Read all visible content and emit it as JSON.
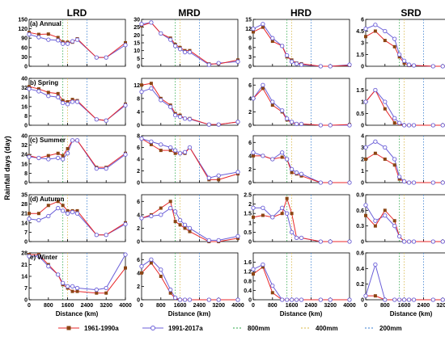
{
  "figure": {
    "ylabel": "Rainfall days (day)",
    "columns": [
      "LRD",
      "MRD",
      "HRD",
      "SRD"
    ],
    "panel_labels": [
      "(a) Annual",
      "b) Spring",
      "(c) Summer",
      "(d) Autumn",
      "e) Winter"
    ],
    "xlabel": "Distance (km)",
    "x_ticks": [
      0,
      800,
      1600,
      2400,
      3200,
      4000
    ],
    "legend": {
      "s1": "1961-1990a",
      "s2": "1991-2017a",
      "l1": "800mm",
      "l2": "400mm",
      "l3": "200mm"
    },
    "colors": {
      "s1_line": "#e8282b",
      "s1_marker": "#8b4513",
      "s2": "#6b5fd8",
      "l800": "#2fa84a",
      "l400": "#d8b84a",
      "l200": "#3a7fd0"
    }
  },
  "chart_data": {
    "type": "line",
    "x": [
      0,
      400,
      800,
      1200,
      1400,
      1600,
      1800,
      2000,
      2800,
      3200,
      4000
    ],
    "xlim": [
      0,
      4000
    ],
    "reference_lines": {
      "800mm": 1400,
      "400mm": 1600,
      "200mm": 2400
    },
    "panels": [
      {
        "row": "(a) Annual",
        "col": "LRD",
        "ylim": [
          0,
          150
        ],
        "yticks": [
          0,
          30,
          60,
          90,
          120,
          150
        ],
        "s1": [
          108,
          102,
          103,
          92,
          78,
          77,
          77,
          88,
          28,
          28,
          75
        ],
        "s2": [
          102,
          93,
          85,
          83,
          72,
          72,
          80,
          85,
          28,
          28,
          68
        ]
      },
      {
        "row": "(a) Annual",
        "col": "MRD",
        "ylim": [
          0,
          30
        ],
        "yticks": [
          0,
          5,
          10,
          15,
          20,
          25,
          30
        ],
        "s1": [
          26,
          28,
          21,
          18,
          14,
          12,
          10,
          10,
          1.5,
          1.5,
          4
        ],
        "s2": [
          27,
          28,
          21,
          17,
          13,
          11,
          9,
          9,
          1,
          2,
          3
        ]
      },
      {
        "row": "(a) Annual",
        "col": "HRD",
        "ylim": [
          0,
          15
        ],
        "yticks": [
          0,
          3,
          6,
          9,
          12,
          15
        ],
        "s1": [
          11,
          12.5,
          8,
          6.5,
          3,
          2,
          1,
          0.8,
          0,
          0,
          0.3
        ],
        "s2": [
          12,
          13.5,
          9,
          6.5,
          3.5,
          1.5,
          0.8,
          0.5,
          0,
          0,
          0.5
        ]
      },
      {
        "row": "(a) Annual",
        "col": "SRD",
        "ylim": [
          0,
          6
        ],
        "yticks": [
          0,
          1.5,
          3,
          4.5,
          6
        ],
        "s1": [
          3.8,
          4.5,
          3.3,
          2.5,
          1.2,
          0.4,
          0.1,
          0.1,
          0,
          0,
          0
        ],
        "s2": [
          4.8,
          5.3,
          4.5,
          3.5,
          1.5,
          0.7,
          0.2,
          0.1,
          0,
          0,
          0
        ]
      },
      {
        "row": "b) Spring",
        "col": "LRD",
        "ylim": [
          0,
          40
        ],
        "yticks": [
          0,
          8,
          16,
          24,
          32,
          40
        ],
        "s1": [
          33,
          31,
          28,
          27,
          21,
          20,
          22,
          21,
          5,
          4,
          18
        ],
        "s2": [
          31,
          29,
          25,
          24,
          19,
          18,
          20,
          20,
          5,
          4,
          17
        ]
      },
      {
        "row": "b) Spring",
        "col": "MRD",
        "ylim": [
          0,
          14
        ],
        "yticks": [
          0,
          4,
          8,
          12
        ],
        "s1": [
          12,
          12.5,
          8,
          6,
          3.5,
          3,
          2,
          2,
          0.2,
          0.2,
          1
        ],
        "s2": [
          10,
          11,
          7.5,
          5.5,
          3,
          2.5,
          2,
          1.8,
          0.2,
          0.2,
          1
        ]
      },
      {
        "row": "b) Spring",
        "col": "HRD",
        "ylim": [
          0,
          7
        ],
        "yticks": [
          0,
          2,
          4,
          6
        ],
        "s1": [
          4,
          5.5,
          3,
          2,
          0.8,
          0.4,
          0.2,
          0.2,
          0,
          0,
          0.1
        ],
        "s2": [
          4,
          6,
          3.5,
          2.2,
          1,
          0.5,
          0.2,
          0.2,
          0,
          0,
          0
        ]
      },
      {
        "row": "b) Spring",
        "col": "SRD",
        "ylim": [
          0,
          2
        ],
        "yticks": [
          0,
          0.5,
          1,
          1.5
        ],
        "s1": [
          1,
          1.5,
          0.7,
          0.1,
          0.05,
          0,
          0,
          0,
          0,
          0,
          0
        ],
        "s2": [
          1,
          1.5,
          1,
          0.3,
          0.1,
          0,
          0,
          0,
          0,
          0,
          0
        ]
      },
      {
        "row": "(c) Summer",
        "col": "LRD",
        "ylim": [
          0,
          40
        ],
        "yticks": [
          0,
          8,
          16,
          24,
          32,
          40
        ],
        "s1": [
          23,
          21,
          23,
          25,
          23,
          29,
          36,
          36,
          13,
          13,
          25
        ],
        "s2": [
          22,
          21,
          20,
          21,
          20,
          25,
          36,
          36,
          12,
          12,
          24
        ]
      },
      {
        "row": "(c) Summer",
        "col": "MRD",
        "ylim": [
          0,
          8
        ],
        "yticks": [
          0,
          2,
          4,
          6,
          8
        ],
        "s1": [
          7.5,
          6.5,
          5.5,
          5.5,
          5,
          5,
          5,
          6,
          0.5,
          0.5,
          1.5
        ],
        "s2": [
          7.5,
          7,
          6.5,
          6,
          5.5,
          5,
          5.2,
          6,
          0.8,
          1.2,
          1.8
        ]
      },
      {
        "row": "(c) Summer",
        "col": "HRD",
        "ylim": [
          0,
          7
        ],
        "yticks": [
          0,
          2,
          4,
          6
        ],
        "s1": [
          4,
          4,
          3.5,
          3.8,
          3.5,
          1.5,
          1.3,
          1,
          0,
          0,
          0
        ],
        "s2": [
          4.5,
          4,
          3.5,
          4.5,
          3.5,
          2,
          1.5,
          1.3,
          0,
          0,
          0
        ]
      },
      {
        "row": "(c) Summer",
        "col": "SRD",
        "ylim": [
          0,
          4
        ],
        "yticks": [
          0,
          1,
          2,
          3,
          4
        ],
        "s1": [
          2,
          2.5,
          2,
          1.5,
          0.3,
          0.1,
          0,
          0,
          0,
          0,
          0
        ],
        "s2": [
          3,
          3.5,
          3,
          2,
          0.5,
          0.1,
          0,
          0,
          0,
          0,
          0
        ]
      },
      {
        "row": "(d) Autumn",
        "col": "LRD",
        "ylim": [
          0,
          35
        ],
        "yticks": [
          0,
          7,
          14,
          21,
          28,
          35
        ],
        "s1": [
          21,
          21,
          27,
          30,
          27,
          23,
          23,
          23,
          5,
          5,
          14
        ],
        "s2": [
          17,
          16,
          19,
          25,
          23,
          21,
          22,
          21,
          5,
          5,
          13
        ]
      },
      {
        "row": "(d) Autumn",
        "col": "MRD",
        "ylim": [
          0,
          7
        ],
        "yticks": [
          0,
          2,
          4,
          6
        ],
        "s1": [
          3.5,
          4,
          5,
          6,
          3,
          2.5,
          2,
          1.5,
          0,
          0,
          0.5
        ],
        "s2": [
          3.5,
          3.8,
          4,
          5,
          4.5,
          3.2,
          2.5,
          2,
          0.2,
          0.2,
          0.8
        ]
      },
      {
        "row": "(d) Autumn",
        "col": "HRD",
        "ylim": [
          0,
          2.5
        ],
        "yticks": [
          0,
          0.5,
          1,
          1.5,
          2,
          2.5
        ],
        "s1": [
          1.3,
          1.4,
          1.3,
          1.5,
          2.3,
          1.5,
          0.2,
          0.2,
          0,
          0,
          0
        ],
        "s2": [
          1.8,
          1.8,
          1.3,
          1.8,
          1.5,
          0.5,
          0.2,
          0.2,
          0,
          0,
          0
        ]
      },
      {
        "row": "(d) Autumn",
        "col": "SRD",
        "ylim": [
          0,
          0.9
        ],
        "yticks": [
          0,
          0.3,
          0.6,
          0.9
        ],
        "s1": [
          0.5,
          0.3,
          0.6,
          0.4,
          0.1,
          0,
          0,
          0,
          0,
          0,
          0
        ],
        "s2": [
          0.7,
          0.4,
          0.5,
          0.3,
          0.1,
          0,
          0,
          0,
          0,
          0,
          0
        ]
      },
      {
        "row": "e) Winter",
        "col": "LRD",
        "ylim": [
          0,
          28
        ],
        "yticks": [
          0,
          7,
          14,
          21,
          28
        ],
        "s1": [
          27,
          27,
          21,
          15,
          9,
          7,
          5,
          5,
          4,
          4,
          19
        ],
        "s2": [
          26,
          26,
          20,
          15,
          10,
          8,
          8,
          7,
          6,
          7,
          27
        ]
      },
      {
        "row": "e) Winter",
        "col": "MRD",
        "ylim": [
          0,
          7
        ],
        "yticks": [
          0,
          2,
          4,
          6
        ],
        "s1": [
          4,
          5.5,
          3.5,
          1,
          0.2,
          0,
          0,
          0,
          0,
          0,
          0
        ],
        "s2": [
          5,
          6,
          4.5,
          1.5,
          0.3,
          0,
          0,
          0,
          0,
          0,
          0
        ]
      },
      {
        "row": "e) Winter",
        "col": "HRD",
        "ylim": [
          0,
          2
        ],
        "yticks": [
          0,
          0.4,
          0.8,
          1.2,
          1.6
        ],
        "s1": [
          1.1,
          1.4,
          0.3,
          0,
          0,
          0,
          0,
          0,
          0,
          0,
          0
        ],
        "s2": [
          1.3,
          1.5,
          0.6,
          0,
          0,
          0,
          0,
          0,
          0,
          0,
          0
        ]
      },
      {
        "row": "e) Winter",
        "col": "SRD",
        "ylim": [
          0,
          0.6
        ],
        "yticks": [
          0,
          0.2,
          0.4,
          0.6
        ],
        "s1": [
          0.05,
          0.05,
          0,
          0,
          0,
          0,
          0,
          0,
          0,
          0,
          0
        ],
        "s2": [
          0.05,
          0.45,
          0,
          0,
          0,
          0,
          0,
          0,
          0,
          0,
          0
        ]
      }
    ]
  }
}
